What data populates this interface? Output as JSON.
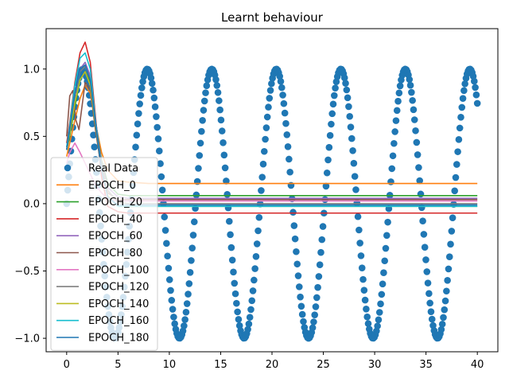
{
  "chart_data": {
    "type": "line",
    "title": "Learnt behaviour",
    "xlabel": "",
    "ylabel": "",
    "xlim": [
      -2.0,
      42.0
    ],
    "ylim": [
      -1.1,
      1.3
    ],
    "x_ticks": [
      0,
      5,
      10,
      15,
      20,
      25,
      30,
      35,
      40
    ],
    "x_tick_labels": [
      "0",
      "5",
      "10",
      "15",
      "20",
      "25",
      "30",
      "35",
      "40"
    ],
    "y_ticks": [
      -1.0,
      -0.5,
      0.0,
      0.5,
      1.0
    ],
    "y_tick_labels": [
      "−1.0",
      "−0.5",
      "0.0",
      "0.5",
      "1.0"
    ],
    "legend_position": "lower-left",
    "scatter": {
      "name": "Real Data",
      "color": "#1f77b4",
      "marker": "circle",
      "function": "sin",
      "x_start": 0,
      "x_end": 40,
      "n_points": 400
    },
    "series": [
      {
        "name": "EPOCH_0",
        "color": "#ff7f0e",
        "x": [
          0.0,
          0.3,
          0.8,
          1.3,
          1.8,
          2.3,
          2.8,
          3.4,
          4.0,
          5.0,
          6.0,
          8.0,
          40.0
        ],
        "y": [
          0.35,
          0.45,
          0.62,
          0.78,
          0.88,
          0.82,
          0.6,
          0.38,
          0.25,
          0.17,
          0.16,
          0.15,
          0.15
        ]
      },
      {
        "name": "EPOCH_20",
        "color": "#2ca02c",
        "x": [
          0.0,
          0.3,
          0.8,
          1.3,
          1.8,
          2.3,
          2.8,
          3.4,
          4.0,
          5.0,
          6.0,
          8.0,
          40.0
        ],
        "y": [
          0.4,
          0.5,
          0.72,
          0.92,
          0.98,
          0.9,
          0.62,
          0.32,
          0.15,
          0.07,
          0.06,
          0.06,
          0.06
        ]
      },
      {
        "name": "EPOCH_40",
        "color": "#d62728",
        "x": [
          0.0,
          0.3,
          0.8,
          1.3,
          1.8,
          2.3,
          2.8,
          3.4,
          4.0,
          5.0,
          6.0,
          8.0,
          40.0
        ],
        "y": [
          0.45,
          0.6,
          0.9,
          1.12,
          1.2,
          1.05,
          0.65,
          0.2,
          -0.02,
          -0.06,
          -0.07,
          -0.07,
          -0.07
        ]
      },
      {
        "name": "EPOCH_60",
        "color": "#9467bd",
        "x": [
          0.0,
          0.3,
          0.8,
          1.3,
          1.8,
          2.3,
          2.8,
          3.4,
          4.0,
          5.0,
          6.0,
          8.0,
          40.0
        ],
        "y": [
          0.4,
          0.55,
          0.8,
          1.0,
          1.05,
          0.95,
          0.62,
          0.3,
          0.12,
          0.05,
          0.04,
          0.04,
          0.04
        ]
      },
      {
        "name": "EPOCH_80",
        "color": "#8c564b",
        "x": [
          0.0,
          0.3,
          0.6,
          0.9,
          1.2,
          1.8,
          2.3,
          2.8,
          3.4,
          4.0,
          5.0,
          8.0,
          40.0
        ],
        "y": [
          0.5,
          0.8,
          0.84,
          0.62,
          0.55,
          0.9,
          0.85,
          0.55,
          0.25,
          0.08,
          0.03,
          0.03,
          0.03
        ]
      },
      {
        "name": "EPOCH_100",
        "color": "#e377c2",
        "x": [
          0.0,
          0.3,
          0.8,
          1.3,
          1.8,
          2.3,
          2.8,
          3.4,
          4.0,
          5.0,
          6.0,
          8.0,
          40.0
        ],
        "y": [
          0.3,
          0.38,
          0.45,
          0.38,
          0.3,
          0.22,
          0.14,
          0.08,
          0.04,
          0.02,
          0.02,
          0.02,
          0.02
        ]
      },
      {
        "name": "EPOCH_120",
        "color": "#7f7f7f",
        "x": [
          0.0,
          0.3,
          0.8,
          1.3,
          1.8,
          2.3,
          2.8,
          3.4,
          4.0,
          5.0,
          6.0,
          8.0,
          40.0
        ],
        "y": [
          0.42,
          0.55,
          0.8,
          0.98,
          1.02,
          0.92,
          0.6,
          0.28,
          0.1,
          0.01,
          0.0,
          0.0,
          0.0
        ]
      },
      {
        "name": "EPOCH_140",
        "color": "#bcbd22",
        "x": [
          0.0,
          0.3,
          0.8,
          1.3,
          1.8,
          2.3,
          2.8,
          3.4,
          4.0,
          5.0,
          6.0,
          8.0,
          40.0
        ],
        "y": [
          0.4,
          0.52,
          0.75,
          0.92,
          0.98,
          0.88,
          0.58,
          0.26,
          0.06,
          -0.02,
          -0.02,
          -0.02,
          -0.02
        ]
      },
      {
        "name": "EPOCH_160",
        "color": "#17becf",
        "x": [
          0.0,
          0.3,
          0.8,
          1.3,
          1.8,
          2.3,
          2.8,
          3.4,
          4.0,
          5.0,
          6.0,
          8.0,
          40.0
        ],
        "y": [
          0.42,
          0.58,
          0.88,
          1.08,
          1.12,
          1.0,
          0.62,
          0.25,
          0.05,
          -0.02,
          -0.02,
          -0.02,
          -0.02
        ]
      },
      {
        "name": "EPOCH_180",
        "color": "#1f77b4",
        "x": [
          0.0,
          0.3,
          0.8,
          1.3,
          1.8,
          2.3,
          2.8,
          3.4,
          4.0,
          5.0,
          6.0,
          8.0,
          40.0
        ],
        "y": [
          0.4,
          0.55,
          0.82,
          1.0,
          1.03,
          0.92,
          0.6,
          0.25,
          0.05,
          -0.01,
          -0.01,
          -0.01,
          -0.01
        ]
      }
    ]
  }
}
